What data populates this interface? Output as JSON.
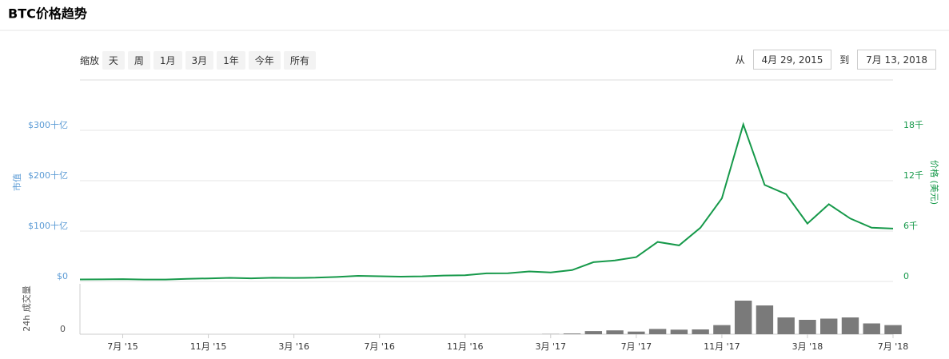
{
  "toolbar": {
    "zoom_label": "缩放",
    "buttons": [
      "天",
      "周",
      "1月",
      "3月",
      "1年",
      "今年",
      "所有"
    ],
    "from_label": "从",
    "from": "4月 29, 2015",
    "to_label": "到",
    "to": "7月 13, 2018"
  },
  "chart_data": [
    {
      "type": "line",
      "title": "BTC价格趋势",
      "y_label": "市值",
      "y2_label": "价格 (美元)",
      "x": [
        "2015-05",
        "2015-06",
        "2015-07",
        "2015-08",
        "2015-09",
        "2015-10",
        "2015-11",
        "2015-12",
        "2016-01",
        "2016-02",
        "2016-03",
        "2016-04",
        "2016-05",
        "2016-06",
        "2016-07",
        "2016-08",
        "2016-09",
        "2016-10",
        "2016-11",
        "2016-12",
        "2017-01",
        "2017-02",
        "2017-03",
        "2017-04",
        "2017-05",
        "2017-06",
        "2017-07",
        "2017-08",
        "2017-09",
        "2017-10",
        "2017-11",
        "2017-12",
        "2018-01",
        "2018-02",
        "2018-03",
        "2018-04",
        "2018-05",
        "2018-06",
        "2018-07"
      ],
      "xlim": [
        "2015-05",
        "2018-07"
      ],
      "series": [
        {
          "color": "#16994a",
          "axis": "y2",
          "values": [
            0.24,
            0.25,
            0.28,
            0.23,
            0.23,
            0.31,
            0.36,
            0.43,
            0.37,
            0.44,
            0.42,
            0.45,
            0.53,
            0.67,
            0.62,
            0.57,
            0.61,
            0.7,
            0.74,
            0.96,
            0.97,
            1.19,
            1.07,
            1.35,
            2.3,
            2.5,
            2.9,
            4.7,
            4.3,
            6.4,
            9.9,
            18.7,
            11.5,
            10.4,
            6.9,
            9.2,
            7.5,
            6.4,
            6.3
          ]
        }
      ],
      "ylim": [
        0,
        400
      ],
      "yticks": [
        {
          "value": 0,
          "label": "$0"
        },
        {
          "value": 100,
          "label": "$100十亿"
        },
        {
          "value": 200,
          "label": "$200十亿"
        },
        {
          "value": 300,
          "label": "$300十亿"
        }
      ],
      "y2lim": [
        0,
        24
      ],
      "y2ticks": [
        0,
        {
          "value": 6,
          "label": "6千"
        },
        {
          "value": 12,
          "label": "12千"
        },
        {
          "value": 18,
          "label": "18千"
        }
      ],
      "grid": true
    },
    {
      "type": "bar",
      "y_label": "24h 成交量",
      "color": "#7a7a7a",
      "x": [
        "2015-05",
        "2015-06",
        "2015-07",
        "2015-08",
        "2015-09",
        "2015-10",
        "2015-11",
        "2015-12",
        "2016-01",
        "2016-02",
        "2016-03",
        "2016-04",
        "2016-05",
        "2016-06",
        "2016-07",
        "2016-08",
        "2016-09",
        "2016-10",
        "2016-11",
        "2016-12",
        "2017-01",
        "2017-02",
        "2017-03",
        "2017-04",
        "2017-05",
        "2017-06",
        "2017-07",
        "2017-08",
        "2017-09",
        "2017-10",
        "2017-11",
        "2017-12",
        "2018-01",
        "2018-02",
        "2018-03",
        "2018-04",
        "2018-05",
        "2018-06",
        "2018-07"
      ],
      "values": [
        0,
        0,
        0,
        0,
        0,
        0,
        0,
        0,
        0,
        0,
        0,
        0,
        0,
        0,
        0,
        0,
        0,
        0,
        0,
        0,
        0,
        0,
        0.1,
        0.3,
        1.3,
        1.6,
        1.1,
        2.2,
        1.9,
        2.0,
        3.8,
        14,
        12,
        7,
        6,
        6.5,
        7,
        4.5,
        3.8
      ],
      "xlim": [
        "2015-05",
        "2018-07"
      ],
      "ylim": [
        0,
        21
      ],
      "yticks": [
        0
      ],
      "xticks": [
        {
          "value": "2015-07",
          "label": "7月 '15"
        },
        {
          "value": "2015-11",
          "label": "11月 '15"
        },
        {
          "value": "2016-03",
          "label": "3月 '16"
        },
        {
          "value": "2016-07",
          "label": "7月 '16"
        },
        {
          "value": "2016-11",
          "label": "11月 '16"
        },
        {
          "value": "2017-03",
          "label": "3月 '17"
        },
        {
          "value": "2017-07",
          "label": "7月 '17"
        },
        {
          "value": "2017-11",
          "label": "11月 '17"
        },
        {
          "value": "2018-03",
          "label": "3月 '18"
        },
        {
          "value": "2018-07",
          "label": "7月 '18"
        }
      ]
    }
  ]
}
